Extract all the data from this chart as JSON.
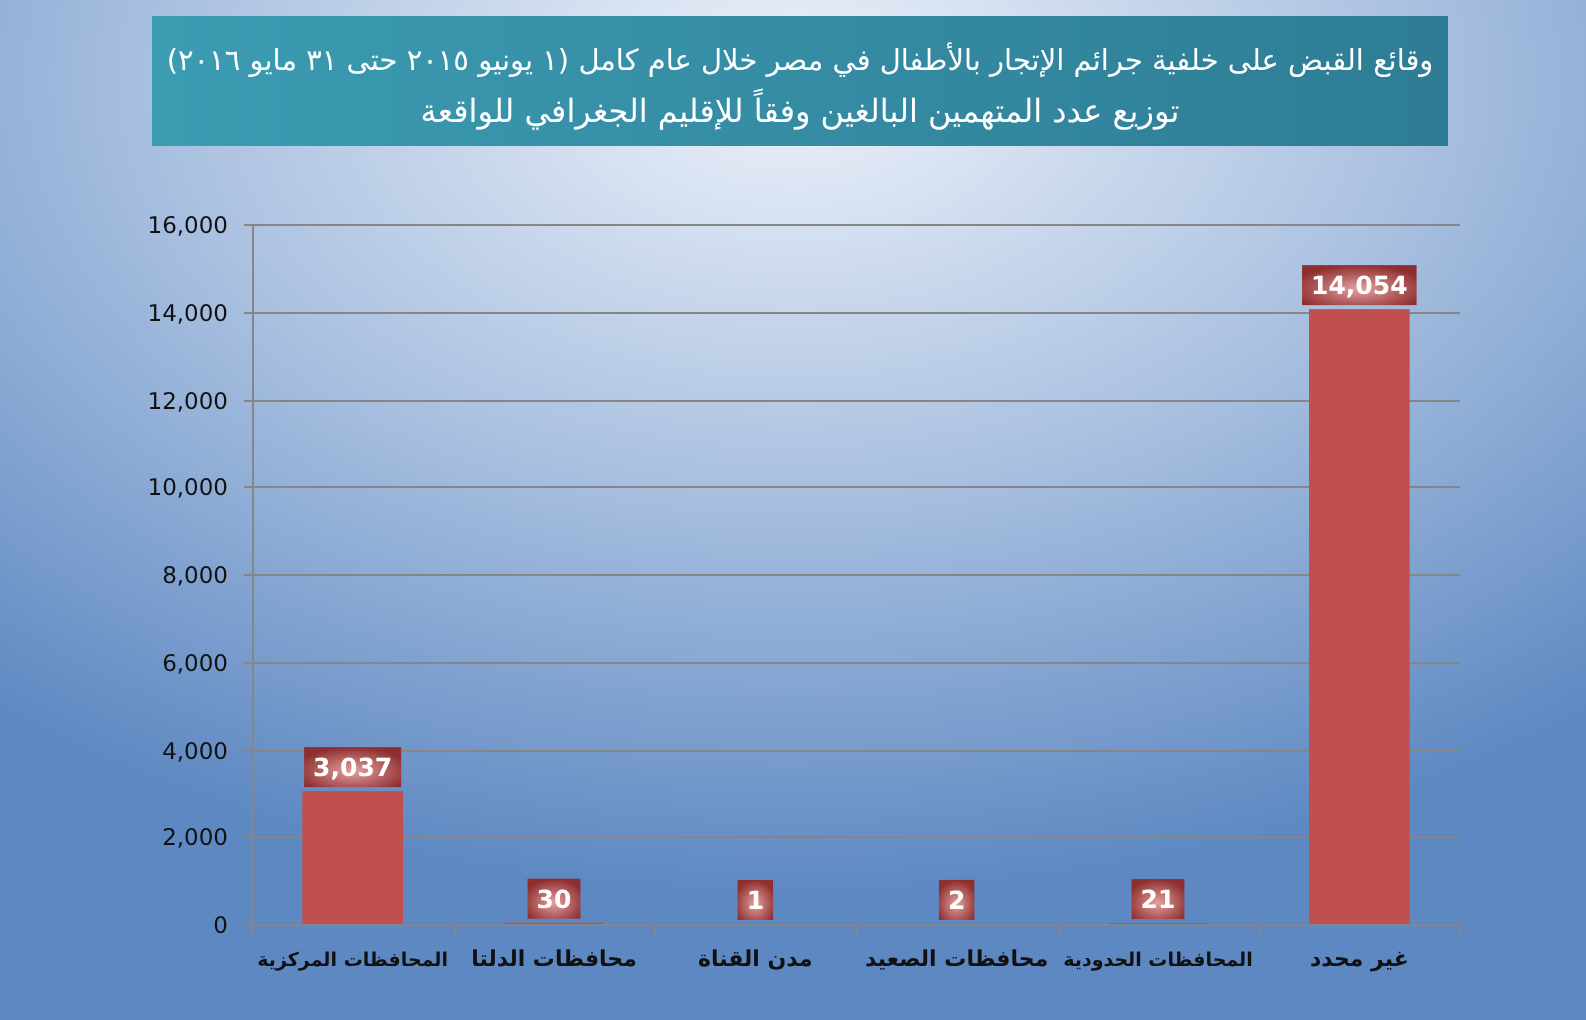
{
  "chart_data": {
    "type": "bar",
    "title": "وقائع القبض على خلفية جرائم الإتجار بالأطفال في مصر خلال عام كامل (١ يونيو ٢٠١٥ حتى ٣١ مايو ٢٠١٦)",
    "subtitle": "توزيع عدد المتهمين البالغين وفقاً للإقليم الجغرافي للواقعة",
    "categories": [
      "المحافظات المركزية",
      "محافظات الدلتا",
      "مدن القناة",
      "محافظات الصعيد",
      "المحافظات الحدودية",
      "غير محدد"
    ],
    "values": [
      3037,
      30,
      1,
      2,
      21,
      14054
    ],
    "value_labels": [
      "3,037",
      "30",
      "1",
      "2",
      "21",
      "14,054"
    ],
    "color": "#c0504d",
    "ylim": [
      0,
      16000
    ],
    "yticks": [
      0,
      {
        "value": 2000,
        "label": "2,000"
      },
      {
        "value": 4000,
        "label": "4,000"
      },
      {
        "value": 6000,
        "label": "6,000"
      },
      {
        "value": 8000,
        "label": "8,000"
      },
      {
        "value": 10000,
        "label": "10,000"
      },
      {
        "value": 12000,
        "label": "12,000"
      },
      {
        "value": 14000,
        "label": "14,000"
      },
      {
        "value": 16000,
        "label": "16,000"
      }
    ],
    "grid": "y"
  }
}
